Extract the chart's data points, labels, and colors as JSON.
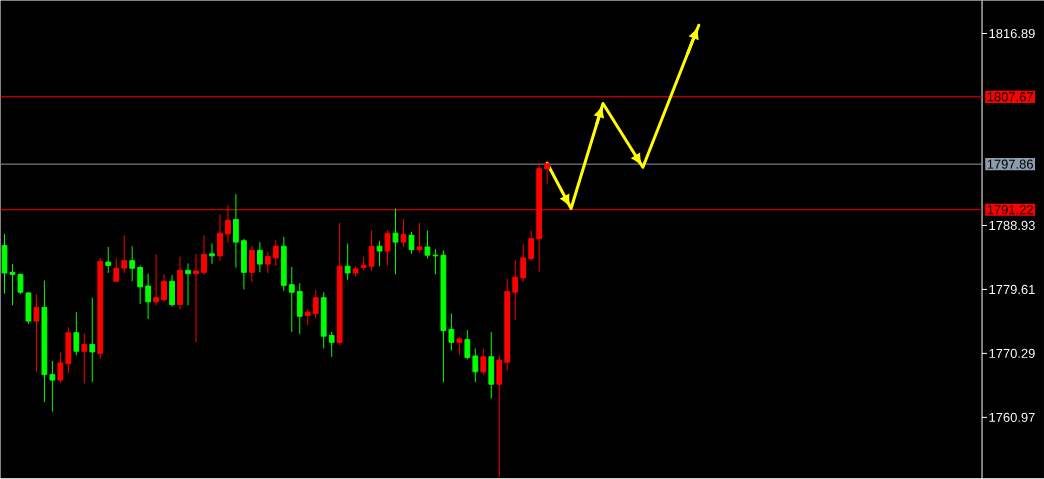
{
  "chart_data": {
    "type": "candlestick",
    "categories": [
      null,
      null,
      null,
      null,
      null,
      null,
      null,
      null,
      null,
      null,
      null,
      null,
      null,
      null,
      null,
      null,
      null,
      null,
      null,
      null,
      null,
      null,
      null,
      null,
      null,
      null,
      null,
      null,
      null,
      null,
      null,
      null,
      null,
      null,
      null,
      null,
      null,
      null,
      null,
      null,
      null,
      null,
      null,
      null,
      null,
      null,
      null,
      null,
      null,
      null,
      null,
      null,
      null,
      null,
      null,
      null,
      null,
      null,
      null,
      null,
      null,
      null,
      null,
      null,
      null,
      null,
      null,
      null,
      null,
      null,
      null,
      null,
      null,
      null,
      null,
      null,
      null,
      null,
      null,
      null,
      null,
      null,
      null,
      null,
      null,
      null,
      null,
      null,
      null,
      null,
      null,
      null,
      null,
      null,
      null,
      null,
      null,
      null,
      null,
      null,
      null,
      null,
      null,
      null,
      null,
      null,
      null,
      null,
      null,
      null,
      null,
      null,
      null,
      null,
      null,
      null,
      null,
      null,
      null,
      null,
      null,
      null,
      null
    ],
    "ohlc": [
      [
        1786.0,
        1787.7,
        1779.0,
        1782.0
      ],
      [
        1782.1,
        1783.3,
        1777.3,
        1781.8
      ],
      [
        1781.8,
        1781.9,
        1778.9,
        1779.2
      ],
      [
        1779.1,
        1779.2,
        1774.6,
        1775.0
      ],
      [
        1775.0,
        1778.9,
        1767.6,
        1777.0
      ],
      [
        1777.0,
        1780.9,
        1763.2,
        1767.2
      ],
      [
        1767.2,
        1769.2,
        1761.8,
        1766.4
      ],
      [
        1766.4,
        1770.4,
        1766.0,
        1768.9
      ],
      [
        1768.8,
        1774.1,
        1767.4,
        1773.3
      ],
      [
        1773.3,
        1776.3,
        1770.0,
        1770.6
      ],
      [
        1770.6,
        1773.2,
        1765.9,
        1771.6
      ],
      [
        1771.6,
        1778.4,
        1766.1,
        1770.5
      ],
      [
        1770.3,
        1784.2,
        1769.5,
        1783.7
      ],
      [
        1783.6,
        1785.8,
        1782.0,
        1783.1
      ],
      [
        1780.8,
        1784.1,
        1780.7,
        1782.7
      ],
      [
        1782.7,
        1787.5,
        1782.0,
        1783.8
      ],
      [
        1783.8,
        1785.9,
        1780.8,
        1782.7
      ],
      [
        1782.8,
        1783.1,
        1777.5,
        1780.0
      ],
      [
        1780.1,
        1781.9,
        1775.3,
        1777.8
      ],
      [
        1777.8,
        1784.7,
        1777.3,
        1778.4
      ],
      [
        1778.1,
        1781.8,
        1777.9,
        1780.8
      ],
      [
        1780.8,
        1781.7,
        1777.1,
        1777.4
      ],
      [
        1777.4,
        1784.4,
        1776.7,
        1782.4
      ],
      [
        1782.4,
        1783.4,
        1777.3,
        1781.9
      ],
      [
        1781.9,
        1784.8,
        1771.9,
        1782.3
      ],
      [
        1782.1,
        1787.5,
        1781.7,
        1784.7
      ],
      [
        1784.8,
        1786.3,
        1783.3,
        1784.5
      ],
      [
        1784.5,
        1790.5,
        1783.8,
        1787.8
      ],
      [
        1787.7,
        1791.9,
        1786.4,
        1789.7
      ],
      [
        1789.8,
        1793.5,
        1782.8,
        1786.5
      ],
      [
        1786.7,
        1787.0,
        1779.6,
        1782.1
      ],
      [
        1782.1,
        1786.0,
        1780.7,
        1785.3
      ],
      [
        1785.3,
        1786.5,
        1782.1,
        1783.3
      ],
      [
        1783.3,
        1785.1,
        1782.0,
        1784.4
      ],
      [
        1784.2,
        1786.8,
        1783.0,
        1785.9
      ],
      [
        1785.9,
        1787.3,
        1779.4,
        1780.2
      ],
      [
        1780.3,
        1782.9,
        1773.4,
        1779.2
      ],
      [
        1779.3,
        1780.5,
        1773.1,
        1775.7
      ],
      [
        1775.8,
        1776.8,
        1774.4,
        1776.3
      ],
      [
        1776.1,
        1779.5,
        1775.4,
        1778.4
      ],
      [
        1778.4,
        1779.2,
        1771.0,
        1772.8
      ],
      [
        1772.9,
        1773.4,
        1769.8,
        1771.9
      ],
      [
        1771.9,
        1789.3,
        1771.5,
        1783.0
      ],
      [
        1783.0,
        1786.3,
        1781.0,
        1782.0
      ],
      [
        1782.0,
        1783.0,
        1781.5,
        1782.6
      ],
      [
        1782.8,
        1784.3,
        1782.4,
        1783.1
      ],
      [
        1783.0,
        1788.2,
        1782.3,
        1785.9
      ],
      [
        1785.9,
        1786.7,
        1783.0,
        1785.2
      ],
      [
        1785.2,
        1788.2,
        1783.1,
        1787.8
      ],
      [
        1787.8,
        1791.4,
        1781.8,
        1786.5
      ],
      [
        1786.5,
        1789.9,
        1785.8,
        1787.6
      ],
      [
        1787.5,
        1788.0,
        1784.8,
        1785.4
      ],
      [
        1785.4,
        1789.3,
        1785.0,
        1785.8
      ],
      [
        1785.8,
        1788.2,
        1784.1,
        1784.6
      ],
      [
        1784.6,
        1785.5,
        1781.8,
        1784.5
      ],
      [
        1784.6,
        1785.3,
        1766.1,
        1773.6
      ],
      [
        1773.8,
        1776.1,
        1770.7,
        1771.9
      ],
      [
        1771.9,
        1772.7,
        1770.1,
        1772.4
      ],
      [
        1772.3,
        1773.7,
        1769.4,
        1769.7
      ],
      [
        1769.9,
        1771.0,
        1766.1,
        1767.6
      ],
      [
        1767.6,
        1771.0,
        1767.2,
        1769.8
      ],
      [
        1769.8,
        1773.4,
        1763.7,
        1765.8
      ],
      [
        1765.8,
        1770.0,
        1752.3,
        1769.3
      ],
      [
        1769.0,
        1781.2,
        1767.8,
        1779.3
      ],
      [
        1779.2,
        1783.9,
        1775.2,
        1781.4
      ],
      [
        1781.3,
        1786.2,
        1780.7,
        1784.2
      ],
      [
        1784.1,
        1788.2,
        1783.8,
        1787.0
      ],
      [
        1787.0,
        1798.0,
        1782.1,
        1797.2
      ],
      [
        1797.2,
        1798.1,
        1795.0,
        1797.9
      ],
      null,
      null,
      null,
      null,
      null,
      null,
      null,
      null,
      null,
      null,
      null,
      null,
      null,
      null,
      null,
      null,
      null,
      null,
      null,
      null,
      null,
      null,
      null,
      null,
      null,
      null,
      null,
      null,
      null,
      null,
      null,
      null,
      null,
      null,
      null,
      null,
      null,
      null,
      null,
      null,
      null,
      null,
      null,
      null,
      null,
      null,
      null,
      null,
      null,
      null,
      null,
      null,
      null,
      null
    ],
    "colors": [
      "#00ff00",
      "#00ff00",
      "#00ff00",
      "#00ff00",
      "#ff0000",
      "#00ff00",
      "#00ff00",
      "#ff0000",
      "#ff0000",
      "#00ff00",
      "#ff0000",
      "#00ff00",
      "#ff0000",
      "#00ff00",
      "#ff0000",
      "#ff0000",
      "#00ff00",
      "#00ff00",
      "#00ff00",
      "#ff0000",
      "#ff0000",
      "#00ff00",
      "#ff0000",
      "#00ff00",
      "#ff0000",
      "#ff0000",
      "#00ff00",
      "#ff0000",
      "#ff0000",
      "#00ff00",
      "#00ff00",
      "#ff0000",
      "#00ff00",
      "#ff0000",
      "#ff0000",
      "#00ff00",
      "#00ff00",
      "#00ff00",
      "#ff0000",
      "#ff0000",
      "#00ff00",
      "#00ff00",
      "#ff0000",
      "#00ff00",
      "#ff0000",
      "#ff0000",
      "#ff0000",
      "#00ff00",
      "#ff0000",
      "#00ff00",
      "#ff0000",
      "#00ff00",
      "#ff0000",
      "#00ff00",
      "#00ff00",
      "#00ff00",
      "#00ff00",
      "#ff0000",
      "#00ff00",
      "#00ff00",
      "#ff0000",
      "#00ff00",
      "#ff0000",
      "#ff0000",
      "#ff0000",
      "#ff0000",
      "#ff0000",
      "#ff0000",
      "#ff0000",
      null,
      null,
      null,
      null,
      null,
      null,
      null,
      null,
      null,
      null,
      null,
      null,
      null,
      null,
      null,
      null,
      null,
      null,
      null,
      null,
      null,
      null,
      null,
      null,
      null,
      null,
      null,
      null,
      null,
      null,
      null,
      null,
      null,
      null,
      null,
      null,
      null,
      null,
      null,
      null,
      null,
      null,
      null,
      null,
      null,
      null,
      null,
      null,
      null,
      null,
      null,
      null,
      null,
      null
    ],
    "series": [
      {
        "type": "line",
        "color": "#ffff00",
        "values": [
          null,
          null,
          null,
          null,
          null,
          null,
          null,
          null,
          null,
          null,
          null,
          null,
          null,
          null,
          null,
          null,
          null,
          null,
          null,
          null,
          null,
          null,
          null,
          null,
          null,
          null,
          null,
          null,
          null,
          null,
          null,
          null,
          null,
          null,
          null,
          null,
          null,
          null,
          null,
          null,
          null,
          null,
          null,
          null,
          null,
          null,
          null,
          null,
          null,
          null,
          null,
          null,
          null,
          null,
          null,
          null,
          null,
          null,
          null,
          null,
          null,
          null,
          null,
          null,
          null,
          null,
          null,
          null,
          1798.0,
          null,
          null,
          1791.4,
          null,
          null,
          null,
          1806.7,
          null,
          null,
          null,
          null,
          1797.4,
          null,
          null,
          null,
          null,
          null,
          null,
          1818.1,
          null,
          null,
          null,
          null,
          null,
          null,
          null,
          null,
          null,
          null,
          null,
          null,
          null,
          null,
          null,
          null,
          null,
          null,
          null,
          null,
          null,
          null,
          null,
          null,
          null,
          null,
          null,
          null,
          null,
          null,
          null,
          null,
          null,
          null,
          null
        ]
      }
    ],
    "ylim": [
      1752.1,
      1821.7
    ],
    "yticks": [
      1760.97,
      1770.29,
      1779.61,
      1788.93,
      1816.89
    ],
    "ref_lines": [
      {
        "axis": "y",
        "value": 1807.67,
        "label": "1807.67",
        "color": "#ff0000"
      },
      {
        "axis": "y",
        "value": 1797.86,
        "label": "1797.86",
        "color": "#8c9cac"
      },
      {
        "axis": "y",
        "value": 1791.22,
        "label": "1791.22",
        "color": "#ff0000"
      }
    ],
    "tick_labels": "y"
  }
}
